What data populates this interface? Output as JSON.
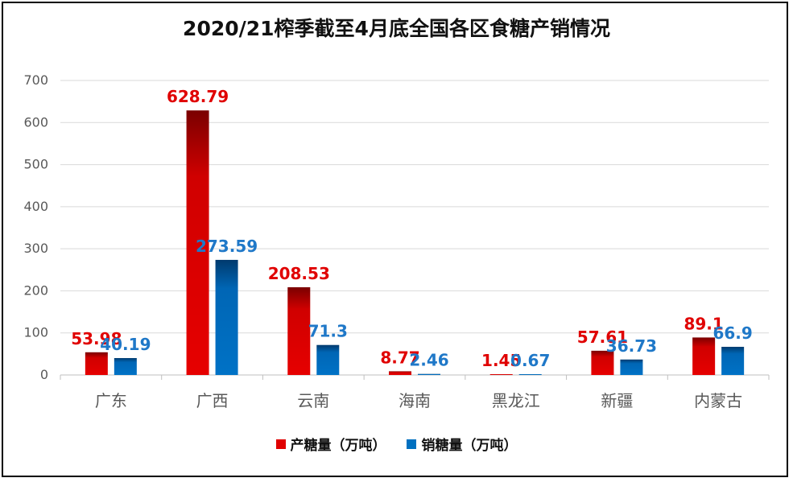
{
  "chart_data": {
    "type": "bar",
    "title": "2020/21榨季截至4月底全国各区食糖产销情况",
    "categories": [
      "广东",
      "广西",
      "云南",
      "海南",
      "黑龙江",
      "新疆",
      "内蒙古"
    ],
    "series": [
      {
        "name": "产糖量（万吨）",
        "color": "#e00000",
        "values": [
          53.98,
          628.79,
          208.53,
          8.77,
          1.45,
          57.61,
          89.1
        ],
        "labels": [
          "53.98",
          "628.79",
          "208.53",
          "8.77",
          "1.45",
          "57.61",
          "89.1"
        ]
      },
      {
        "name": "销糖量（万吨）",
        "color": "#0070c0",
        "values": [
          40.19,
          273.59,
          71.3,
          2.46,
          0.67,
          36.73,
          66.9
        ],
        "labels": [
          "40.19",
          "273.59",
          "71.3",
          "2.46",
          "0.67",
          "36.73",
          "66.9"
        ]
      }
    ],
    "y_ticks": [
      "0",
      "100",
      "200",
      "300",
      "400",
      "500",
      "600",
      "700"
    ],
    "ylim": [
      0,
      700
    ],
    "grid": true,
    "legend_position": "bottom"
  }
}
